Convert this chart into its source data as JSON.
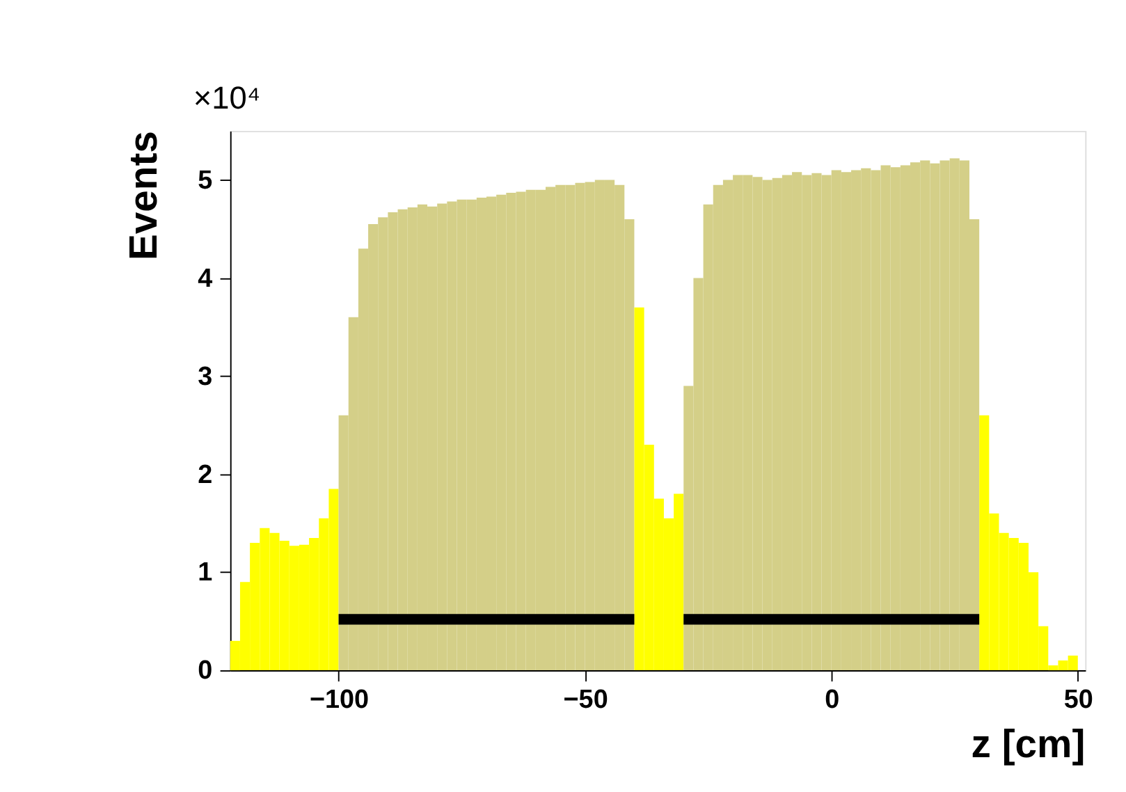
{
  "chart_data": {
    "type": "histogram",
    "xlabel": "z [cm]",
    "ylabel": "Events",
    "annotations": [
      "×10⁴"
    ],
    "bins": [
      -122,
      -120,
      -118,
      -116,
      -114,
      -112,
      -110,
      -108,
      -106,
      -104,
      -102,
      -100,
      -98,
      -96,
      -94,
      -92,
      -90,
      -88,
      -86,
      -84,
      -82,
      -80,
      -78,
      -76,
      -74,
      -72,
      -70,
      -68,
      -66,
      -64,
      -62,
      -60,
      -58,
      -56,
      -54,
      -52,
      -50,
      -48,
      -46,
      -44,
      -42,
      -40,
      -38,
      -36,
      -34,
      -32,
      -30,
      -28,
      -26,
      -24,
      -22,
      -20,
      -18,
      -16,
      -14,
      -12,
      -10,
      -8,
      -6,
      -4,
      -2,
      0,
      2,
      4,
      6,
      8,
      10,
      12,
      14,
      16,
      18,
      20,
      22,
      24,
      26,
      28,
      30,
      32,
      34,
      36,
      38,
      40,
      42,
      44,
      46,
      48,
      50
    ],
    "values": [
      0.3,
      0.9,
      1.3,
      1.45,
      1.4,
      1.32,
      1.27,
      1.28,
      1.35,
      1.55,
      1.85,
      2.6,
      3.6,
      4.3,
      4.55,
      4.62,
      4.67,
      4.7,
      4.72,
      4.75,
      4.73,
      4.76,
      4.78,
      4.8,
      4.8,
      4.82,
      4.83,
      4.85,
      4.87,
      4.88,
      4.9,
      4.9,
      4.93,
      4.95,
      4.95,
      4.97,
      4.98,
      5.0,
      5.0,
      4.95,
      4.6,
      3.7,
      2.3,
      1.75,
      1.55,
      1.8,
      2.9,
      4.0,
      4.75,
      4.95,
      5.0,
      5.05,
      5.05,
      5.03,
      5.0,
      5.02,
      5.05,
      5.08,
      5.05,
      5.07,
      5.05,
      5.1,
      5.08,
      5.1,
      5.12,
      5.1,
      5.15,
      5.13,
      5.15,
      5.18,
      5.2,
      5.17,
      5.2,
      5.22,
      5.2,
      4.6,
      2.6,
      1.6,
      1.4,
      1.35,
      1.3,
      1.0,
      0.45,
      0.05,
      0.1,
      0.15
    ],
    "colors": [
      "#ffff00",
      "#ffff00",
      "#ffff00",
      "#ffff00",
      "#ffff00",
      "#ffff00",
      "#ffff00",
      "#ffff00",
      "#ffff00",
      "#ffff00",
      "#ffff00",
      "#d4cf88",
      "#d4cf88",
      "#d4cf88",
      "#d4cf88",
      "#d4cf88",
      "#d4cf88",
      "#d4cf88",
      "#d4cf88",
      "#d4cf88",
      "#d4cf88",
      "#d4cf88",
      "#d4cf88",
      "#d4cf88",
      "#d4cf88",
      "#d4cf88",
      "#d4cf88",
      "#d4cf88",
      "#d4cf88",
      "#d4cf88",
      "#d4cf88",
      "#d4cf88",
      "#d4cf88",
      "#d4cf88",
      "#d4cf88",
      "#d4cf88",
      "#d4cf88",
      "#d4cf88",
      "#d4cf88",
      "#d4cf88",
      "#d4cf88",
      "#ffff00",
      "#ffff00",
      "#ffff00",
      "#ffff00",
      "#ffff00",
      "#d4cf88",
      "#d4cf88",
      "#d4cf88",
      "#d4cf88",
      "#d4cf88",
      "#d4cf88",
      "#d4cf88",
      "#d4cf88",
      "#d4cf88",
      "#d4cf88",
      "#d4cf88",
      "#d4cf88",
      "#d4cf88",
      "#d4cf88",
      "#d4cf88",
      "#d4cf88",
      "#d4cf88",
      "#d4cf88",
      "#d4cf88",
      "#d4cf88",
      "#d4cf88",
      "#d4cf88",
      "#d4cf88",
      "#d4cf88",
      "#d4cf88",
      "#d4cf88",
      "#d4cf88",
      "#d4cf88",
      "#d4cf88",
      "#d4cf88",
      "#ffff00",
      "#ffff00",
      "#ffff00",
      "#ffff00",
      "#ffff00",
      "#ffff00",
      "#ffff00",
      "#ffff00",
      "#ffff00",
      "#ffff00"
    ],
    "series": [
      {
        "type": "line",
        "color": "#000000",
        "x": [
          -100,
          -40
        ],
        "values": [
          0.52,
          0.52
        ]
      },
      {
        "type": "line",
        "color": "#000000",
        "x": [
          -30,
          30
        ],
        "values": [
          0.52,
          0.52
        ]
      }
    ],
    "xlim": [
      -122,
      51.5
    ],
    "ylim": [
      0,
      5.5
    ],
    "xticks": [
      -100,
      -50,
      0,
      50
    ],
    "yticks": [
      0,
      1,
      2,
      3,
      4,
      5
    ],
    "grid": false
  }
}
